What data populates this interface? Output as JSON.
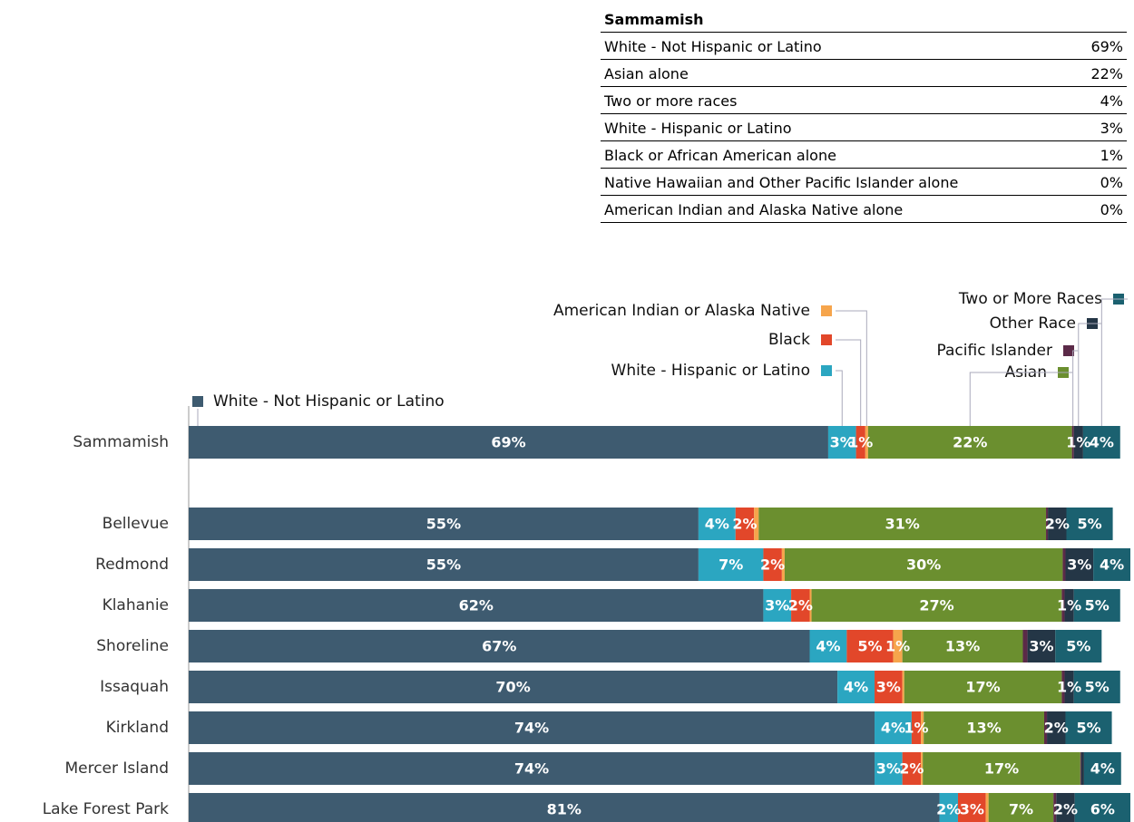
{
  "table": {
    "title": "Sammamish",
    "rows": [
      [
        "White - Not Hispanic or Latino",
        "69%"
      ],
      [
        "Asian alone",
        "22%"
      ],
      [
        "Two or more races",
        "4%"
      ],
      [
        "White - Hispanic or Latino",
        "3%"
      ],
      [
        "Black or African American alone",
        "1%"
      ],
      [
        "Native Hawaiian and Other Pacific Islander alone",
        "0%"
      ],
      [
        "American Indian and Alaska Native alone",
        "0%"
      ]
    ]
  },
  "chart_data": {
    "type": "stacked_barh",
    "categories": [
      "Sammamish",
      "Bellevue",
      "Redmond",
      "Klahanie",
      "Shoreline",
      "Issaquah",
      "Kirkland",
      "Mercer Island",
      "Lake Forest Park"
    ],
    "series": [
      {
        "name": "White - Not Hispanic or Latino",
        "color": "#3e5b70",
        "values": [
          69,
          55,
          55,
          62,
          67,
          70,
          74,
          74,
          81
        ],
        "value_labels": [
          "69%",
          "55%",
          "55%",
          "62%",
          "67%",
          "70%",
          "74%",
          "74%",
          "81%"
        ]
      },
      {
        "name": "White - Hispanic or Latino",
        "color": "#2ba6c1",
        "values": [
          3,
          4,
          7,
          3,
          4,
          4,
          4,
          3,
          2
        ],
        "value_labels": [
          "3%",
          "4%",
          "7%",
          "3%",
          "4%",
          "4%",
          "4%",
          "3%",
          "2%"
        ]
      },
      {
        "name": "Black",
        "color": "#e2472a",
        "values": [
          1,
          2,
          2,
          2,
          5,
          3,
          1,
          2,
          3
        ],
        "value_labels": [
          "1%",
          "2%",
          "2%",
          "2%",
          "5%",
          "3%",
          "1%",
          "2%",
          "3%"
        ]
      },
      {
        "name": "American Indian or Alaska Native",
        "color": "#f6a54c",
        "values": [
          0.3,
          0.5,
          0.3,
          0.2,
          1,
          0.2,
          0.3,
          0.2,
          0.3
        ],
        "value_labels": [
          null,
          null,
          null,
          null,
          "1%",
          null,
          null,
          null,
          null
        ]
      },
      {
        "name": "Asian",
        "color": "#6b8f2f",
        "values": [
          22,
          31,
          30,
          27,
          13,
          17,
          13,
          17,
          7
        ],
        "value_labels": [
          "22%",
          "31%",
          "30%",
          "27%",
          "13%",
          "17%",
          "13%",
          "17%",
          "7%"
        ]
      },
      {
        "name": "Pacific Islander",
        "color": "#5b2a48",
        "values": [
          0.2,
          0.2,
          0.3,
          0.3,
          0.5,
          0.3,
          0.3,
          0.1,
          0.3
        ],
        "value_labels": [
          null,
          null,
          null,
          null,
          null,
          null,
          null,
          null,
          null
        ]
      },
      {
        "name": "Other Race",
        "color": "#243646",
        "values": [
          1,
          2,
          3,
          1,
          3,
          1,
          2,
          0.3,
          2
        ],
        "value_labels": [
          "1%",
          "2%",
          "3%",
          "1%",
          "3%",
          "1%",
          "2%",
          null,
          "2%"
        ]
      },
      {
        "name": "Two or More Races",
        "color": "#1b6170",
        "values": [
          4,
          5,
          4,
          5,
          5,
          5,
          5,
          4,
          6
        ],
        "value_labels": [
          "4%",
          "5%",
          "4%",
          "5%",
          "5%",
          "5%",
          "5%",
          "4%",
          "6%"
        ]
      }
    ]
  }
}
